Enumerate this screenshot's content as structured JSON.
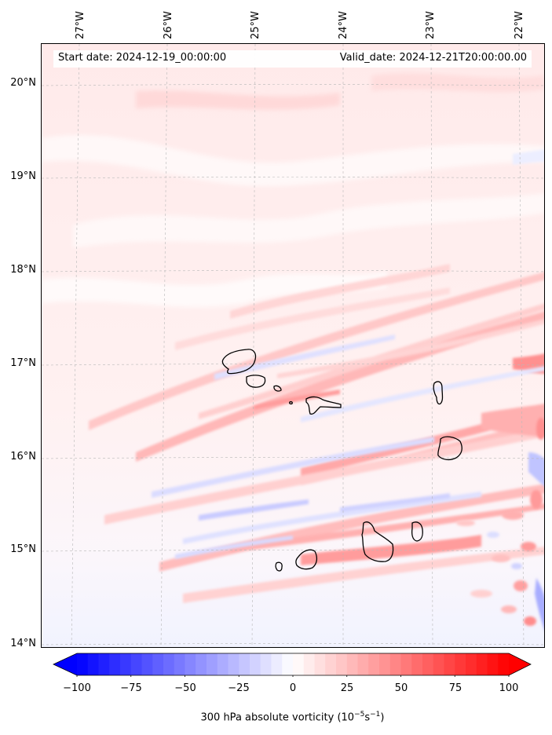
{
  "map": {
    "lon_ticks": [
      "27°W",
      "26°W",
      "25°W",
      "24°W",
      "23°W",
      "22°W"
    ],
    "lat_ticks": [
      "20°N",
      "19°N",
      "18°N",
      "17°N",
      "16°N",
      "15°N",
      "14°N"
    ],
    "gridlines": true,
    "colormap": "bwr",
    "background_tint": "#ffe8e8"
  },
  "info": {
    "start_date": "Start date: 2024-12-19_00:00:00",
    "valid_date": "Valid_date: 2024-12-21T20:00:00.00"
  },
  "colorbar": {
    "ticks": [
      "−100",
      "−75",
      "−50",
      "−25",
      "0",
      "25",
      "50",
      "75",
      "100"
    ],
    "min": -100,
    "max": 100,
    "label_main": "300 hPa absolute vorticity (10",
    "label_exp1": "−5",
    "label_mid": "s",
    "label_exp2": "−1",
    "label_end": ")",
    "colors": {
      "low": "#0000ff",
      "mid": "#ffffff",
      "high": "#ff0000"
    }
  }
}
